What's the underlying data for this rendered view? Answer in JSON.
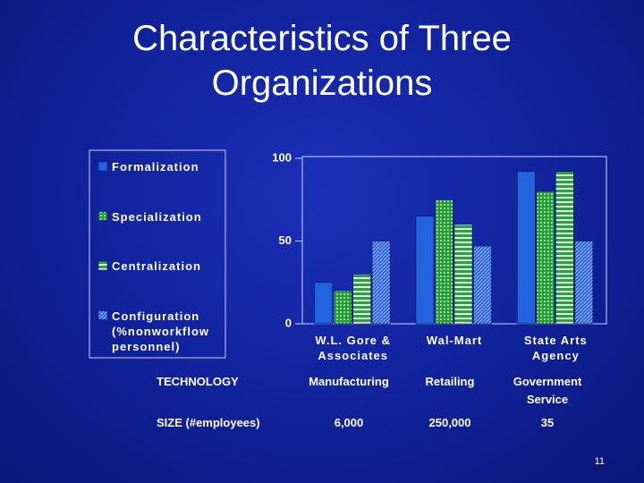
{
  "chart_data": {
    "type": "bar",
    "title": "Characteristics of Three Organizations",
    "categories": [
      "W.L. Gore & Associates",
      "Wal-Mart",
      "State Arts Agency"
    ],
    "series": [
      {
        "name": "Formalization",
        "color": "#2463e0",
        "values": [
          25,
          65,
          92
        ]
      },
      {
        "name": "Specialization",
        "color": "url(#p1)",
        "values": [
          20,
          75,
          80
        ]
      },
      {
        "name": "Centralization",
        "color": "url(#p2)",
        "values": [
          30,
          60,
          92
        ]
      },
      {
        "name": "Configuration (%nonworkflow personnel)",
        "color": "url(#p3)",
        "values": [
          50,
          47,
          50
        ]
      }
    ],
    "ylim": [
      0,
      100
    ],
    "yticks": [
      0,
      50,
      100
    ],
    "legend": "left"
  },
  "table": {
    "rows": [
      [
        "TECHNOLOGY",
        "Manufacturing",
        "Retailing",
        "Government Service"
      ],
      [
        "SIZE (#employees)",
        "6,000",
        "250,000",
        "35"
      ]
    ]
  },
  "slide_number": "11"
}
